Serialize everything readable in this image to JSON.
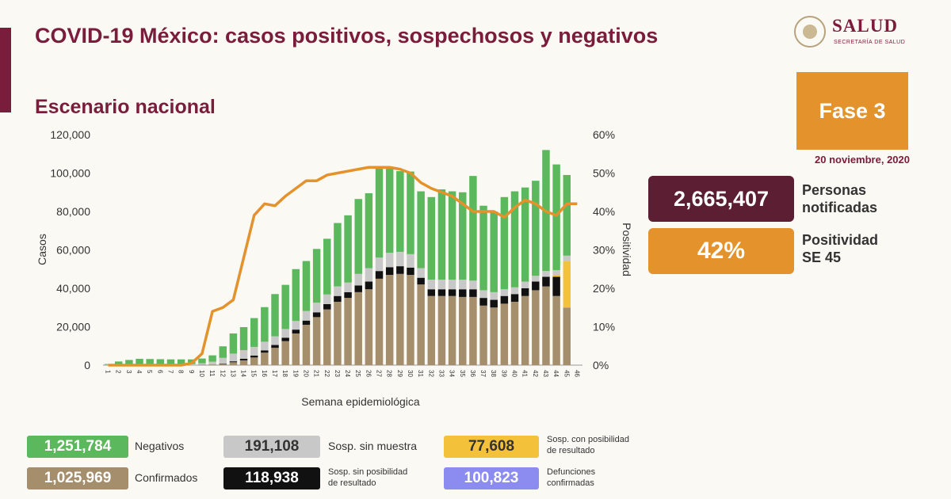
{
  "header": {
    "title": "COVID-19 México: casos positivos, sospechosos y negativos",
    "subtitle": "Escenario nacional"
  },
  "logo": {
    "brand": "SALUD",
    "subbrand": "SECRETARÍA DE SALUD"
  },
  "phase": {
    "label": "Fase 3",
    "date": "20 noviembre, 2020",
    "color": "#e4922c"
  },
  "stats": [
    {
      "value": "2,665,407",
      "label_line1": "Personas",
      "label_line2": "notificadas",
      "color": "#5b1e32"
    },
    {
      "value": "42%",
      "label_line1": "Positividad",
      "label_line2": "SE 45",
      "color": "#e4922c"
    }
  ],
  "legend": [
    {
      "value": "1,251,784",
      "label": "Negativos",
      "color": "#5cb85c",
      "text_color": "#ffffff"
    },
    {
      "value": "191,108",
      "label": "Sosp. sin muestra",
      "color": "#c8c8c8",
      "text_color": "#333333"
    },
    {
      "value": "77,608",
      "label_line1": "Sosp. con posibilidad",
      "label_line2": "de resultado",
      "color": "#f3c13a",
      "text_color": "#333333"
    },
    {
      "value": "1,025,969",
      "label": "Confirmados",
      "color": "#a58e6b",
      "text_color": "#ffffff"
    },
    {
      "value": "118,938",
      "label_line1": "Sosp. sin posibilidad",
      "label_line2": "de resultado",
      "color": "#111111",
      "text_color": "#ffffff"
    },
    {
      "value": "100,823",
      "label_line1": "Defunciones",
      "label_line2": "confirmadas",
      "color": "#8c8cf0",
      "text_color": "#ffffff"
    }
  ],
  "chart_data": {
    "type": "bar",
    "stacked": true,
    "xlabel": "Semana epidemiológica",
    "ylabel": "Casos",
    "y2label": "Positividad",
    "ylim": [
      0,
      120000
    ],
    "y2lim": [
      0,
      60
    ],
    "yticks": [
      "0",
      "20,000",
      "40,000",
      "60,000",
      "80,000",
      "100,000",
      "120,000"
    ],
    "y2ticks": [
      "0%",
      "10%",
      "20%",
      "30%",
      "40%",
      "50%",
      "60%"
    ],
    "categories": [
      "1",
      "2",
      "3",
      "4",
      "5",
      "6",
      "7",
      "8",
      "9",
      "10",
      "11",
      "12",
      "13",
      "14",
      "15",
      "16",
      "17",
      "18",
      "19",
      "20",
      "21",
      "22",
      "23",
      "24",
      "25",
      "26",
      "27",
      "28",
      "29",
      "30",
      "31",
      "32",
      "33",
      "34",
      "35",
      "36",
      "37",
      "38",
      "39",
      "40",
      "41",
      "42",
      "43",
      "44",
      "45",
      "46"
    ],
    "series": [
      {
        "name": "Confirmados",
        "color": "#a58e6b",
        "values": [
          0,
          0,
          0,
          0,
          0,
          0,
          0,
          0,
          0,
          100,
          200,
          600,
          1500,
          2500,
          4000,
          6500,
          9000,
          12500,
          16500,
          21000,
          25000,
          29000,
          33000,
          35000,
          38000,
          39500,
          45000,
          47000,
          47500,
          47000,
          42000,
          36000,
          36000,
          36000,
          35500,
          35500,
          31000,
          30000,
          32000,
          33000,
          36000,
          39000,
          41000,
          36000,
          30000,
          0
        ]
      },
      {
        "name": "Sosp. sin posibilidad de resultado",
        "color": "#111111",
        "values": [
          0,
          0,
          0,
          0,
          0,
          0,
          0,
          0,
          0,
          50,
          100,
          200,
          500,
          800,
          1000,
          1200,
          1500,
          1800,
          2000,
          2200,
          2500,
          2800,
          3000,
          3000,
          3500,
          4000,
          4000,
          4000,
          4000,
          3800,
          3500,
          3500,
          3500,
          3500,
          4000,
          4000,
          4000,
          4000,
          4000,
          4000,
          4000,
          4500,
          5000,
          10000,
          0,
          0
        ]
      },
      {
        "name": "Sosp. con posibilidad de resultado",
        "color": "#f3c13a",
        "values": [
          0,
          0,
          0,
          0,
          0,
          0,
          0,
          0,
          0,
          0,
          0,
          0,
          0,
          0,
          0,
          0,
          0,
          0,
          0,
          0,
          0,
          0,
          0,
          0,
          0,
          0,
          0,
          0,
          0,
          0,
          0,
          0,
          0,
          0,
          0,
          0,
          0,
          0,
          0,
          0,
          0,
          0,
          0,
          1000,
          24000,
          0
        ]
      },
      {
        "name": "Sosp. sin muestra",
        "color": "#c8c8c8",
        "values": [
          200,
          400,
          500,
          500,
          500,
          500,
          500,
          500,
          500,
          800,
          1500,
          3000,
          4000,
          4500,
          4500,
          4500,
          4500,
          4500,
          4500,
          5000,
          5000,
          5000,
          5000,
          5000,
          6000,
          7000,
          7000,
          7500,
          7500,
          7000,
          5000,
          5000,
          5000,
          5000,
          5000,
          4500,
          4000,
          4000,
          3500,
          3500,
          3500,
          3000,
          3000,
          2500,
          3000,
          0
        ]
      },
      {
        "name": "Negativos",
        "color": "#5cb85c",
        "values": [
          400,
          1500,
          2200,
          2800,
          2700,
          2600,
          2500,
          2500,
          2500,
          2500,
          3300,
          6000,
          10500,
          12000,
          15000,
          18000,
          22000,
          23000,
          27000,
          26000,
          28000,
          29000,
          33000,
          35000,
          39000,
          39000,
          47000,
          44000,
          42000,
          43000,
          40000,
          43000,
          47000,
          46000,
          45500,
          54500,
          44000,
          42000,
          48000,
          50000,
          49000,
          49500,
          63000,
          55000,
          42000,
          0
        ]
      }
    ],
    "positivity": {
      "name": "Positividad",
      "color": "#e4922c",
      "values": [
        0,
        0,
        0,
        0,
        0,
        0,
        0,
        0,
        0.5,
        3,
        14,
        15,
        17,
        28,
        39,
        42,
        41.5,
        44,
        46,
        48,
        48,
        49.5,
        50,
        50.5,
        51,
        51.5,
        51.5,
        51.5,
        51,
        50,
        47.5,
        46,
        45,
        44,
        42,
        40,
        40,
        40,
        38.5,
        41,
        43,
        42,
        40,
        39,
        42,
        42
      ]
    }
  }
}
